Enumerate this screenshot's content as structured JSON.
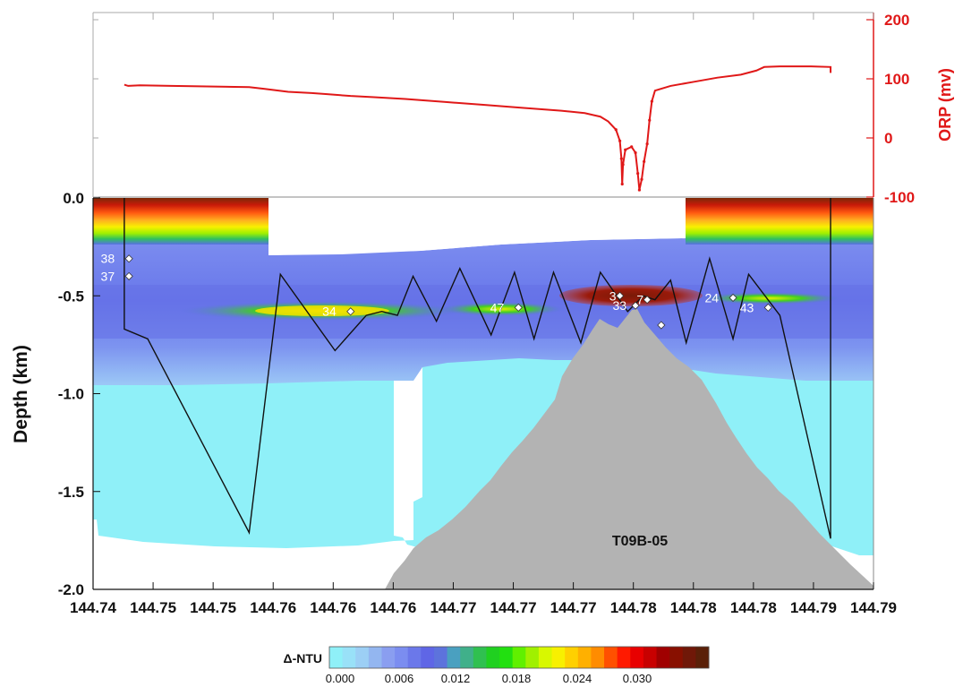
{
  "chart_data": {
    "type": "contour-section",
    "title": "",
    "ylabel": "Depth (km)",
    "ylabel_right": "ORP (mv)",
    "x_ticks": [
      "144.74",
      "144.75",
      "144.75",
      "144.76",
      "144.76",
      "144.76",
      "144.77",
      "144.77",
      "144.77",
      "144.78",
      "144.78",
      "144.78",
      "144.79",
      "144.79"
    ],
    "y_ticks": [
      {
        "value": 0.0,
        "label": "0.0"
      },
      {
        "value": -0.5,
        "label": "-0.5"
      },
      {
        "value": -1.0,
        "label": "-1.0"
      },
      {
        "value": -1.5,
        "label": "-1.5"
      },
      {
        "value": -2.0,
        "label": "-2.0"
      }
    ],
    "ylim": [
      -2.0,
      0.0
    ],
    "y_right_ticks": [
      {
        "value": 200,
        "label": "200"
      },
      {
        "value": 100,
        "label": "100"
      },
      {
        "value": 0,
        "label": "0"
      },
      {
        "value": -100,
        "label": "-100"
      }
    ],
    "y_right_lim": [
      -100,
      200
    ],
    "orp_series": {
      "name": "ORP",
      "color": "#e01818",
      "points": [
        [
          0.04,
          90
        ],
        [
          0.045,
          88
        ],
        [
          0.06,
          89
        ],
        [
          0.1,
          88
        ],
        [
          0.2,
          86
        ],
        [
          0.22,
          83
        ],
        [
          0.25,
          78
        ],
        [
          0.28,
          76
        ],
        [
          0.3,
          74
        ],
        [
          0.33,
          71
        ],
        [
          0.36,
          69
        ],
        [
          0.4,
          66
        ],
        [
          0.45,
          61
        ],
        [
          0.5,
          56
        ],
        [
          0.55,
          51
        ],
        [
          0.6,
          46
        ],
        [
          0.63,
          42
        ],
        [
          0.65,
          36
        ],
        [
          0.66,
          28
        ],
        [
          0.67,
          14
        ],
        [
          0.675,
          -5
        ],
        [
          0.677,
          -35
        ],
        [
          0.678,
          -78
        ],
        [
          0.679,
          -45
        ],
        [
          0.682,
          -20
        ],
        [
          0.69,
          -15
        ],
        [
          0.695,
          -25
        ],
        [
          0.698,
          -60
        ],
        [
          0.7,
          -88
        ],
        [
          0.703,
          -70
        ],
        [
          0.706,
          -40
        ],
        [
          0.71,
          -10
        ],
        [
          0.713,
          30
        ],
        [
          0.716,
          62
        ],
        [
          0.72,
          80
        ],
        [
          0.74,
          88
        ],
        [
          0.77,
          95
        ],
        [
          0.8,
          102
        ],
        [
          0.83,
          107
        ],
        [
          0.85,
          114
        ],
        [
          0.86,
          120
        ],
        [
          0.88,
          121
        ],
        [
          0.9,
          121
        ],
        [
          0.92,
          121
        ],
        [
          0.945,
          120
        ],
        [
          0.945,
          110
        ]
      ]
    },
    "tow_track_depths_km": [
      [
        0.04,
        0.0
      ],
      [
        0.04,
        -0.67
      ],
      [
        0.07,
        -0.72
      ],
      [
        0.2,
        -1.71
      ],
      [
        0.24,
        -0.39
      ],
      [
        0.31,
        -0.78
      ],
      [
        0.35,
        -0.6
      ],
      [
        0.37,
        -0.58
      ],
      [
        0.39,
        -0.6
      ],
      [
        0.41,
        -0.4
      ],
      [
        0.44,
        -0.63
      ],
      [
        0.47,
        -0.36
      ],
      [
        0.51,
        -0.7
      ],
      [
        0.54,
        -0.38
      ],
      [
        0.565,
        -0.72
      ],
      [
        0.59,
        -0.38
      ],
      [
        0.625,
        -0.74
      ],
      [
        0.65,
        -0.38
      ],
      [
        0.685,
        -0.58
      ],
      [
        0.705,
        -0.5
      ],
      [
        0.72,
        -0.52
      ],
      [
        0.74,
        -0.42
      ],
      [
        0.76,
        -0.74
      ],
      [
        0.79,
        -0.31
      ],
      [
        0.82,
        -0.72
      ],
      [
        0.84,
        -0.39
      ],
      [
        0.88,
        -0.6
      ],
      [
        0.945,
        -1.74
      ],
      [
        0.945,
        0.0
      ]
    ],
    "stations": [
      {
        "label": "38",
        "depth": -0.31
      },
      {
        "label": "37",
        "depth": -0.4
      },
      {
        "label": "34",
        "depth": -0.58
      },
      {
        "label": "47",
        "depth": -0.56
      },
      {
        "label": "3",
        "depth": -0.5
      },
      {
        "label": "33",
        "depth": -0.55
      },
      {
        "label": "7",
        "depth": -0.52
      },
      {
        "label": "24",
        "depth": -0.51
      },
      {
        "label": "43",
        "depth": -0.56
      },
      {
        "label": "",
        "depth": -0.65
      }
    ],
    "seamount_label": "T09B-05",
    "colorbar": {
      "title": "Δ-NTU",
      "ticks": [
        "0.000",
        "0.006",
        "0.012",
        "0.018",
        "0.024",
        "0.030"
      ],
      "colors": [
        "#8ff0f8",
        "#99e1f8",
        "#9ccff5",
        "#93b6f0",
        "#8a9ef0",
        "#7b8df0",
        "#6b78ea",
        "#5f66e6",
        "#5d73dc",
        "#4aa0c0",
        "#40b08a",
        "#30c050",
        "#20d020",
        "#22e010",
        "#60f000",
        "#a0f000",
        "#d8f800",
        "#f8f000",
        "#ffd000",
        "#ffb000",
        "#ff8c00",
        "#ff5000",
        "#ff1a00",
        "#e80000",
        "#c80000",
        "#a00000",
        "#881000",
        "#701808",
        "#5a2008"
      ]
    }
  }
}
